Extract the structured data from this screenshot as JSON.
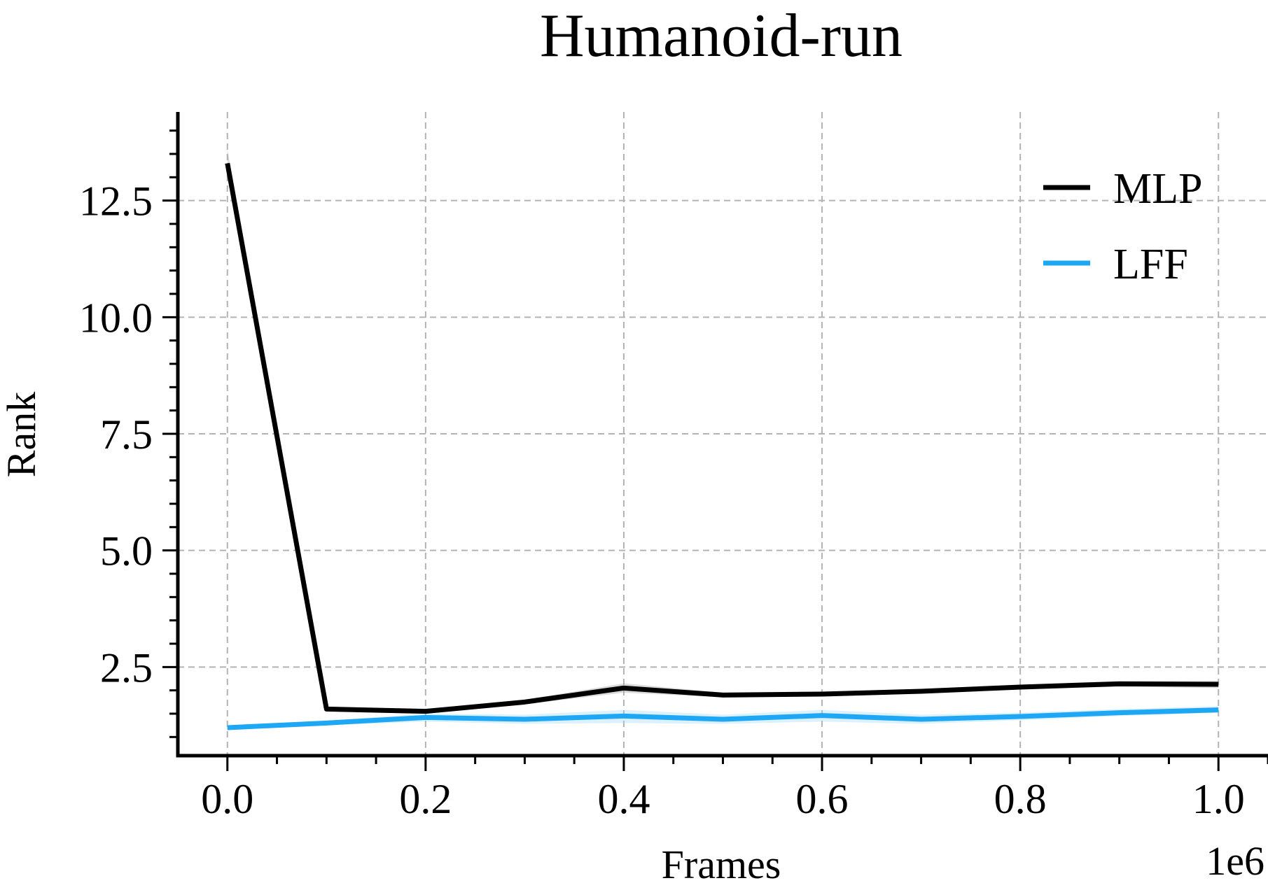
{
  "chart_data": {
    "type": "line",
    "title": "Humanoid-run",
    "xlabel": "Frames",
    "ylabel": "Rank",
    "x_offset_label": "1e6",
    "xlim": [
      -0.05,
      1.05
    ],
    "ylim": [
      0.6,
      14.4
    ],
    "xticks": [
      0.0,
      0.2,
      0.4,
      0.6,
      0.8,
      1.0
    ],
    "xtick_labels": [
      "0.0",
      "0.2",
      "0.4",
      "0.6",
      "0.8",
      "1.0"
    ],
    "yticks": [
      2.5,
      5.0,
      7.5,
      10.0,
      12.5
    ],
    "ytick_labels": [
      "2.5",
      "5.0",
      "7.5",
      "10.0",
      "12.5"
    ],
    "x_minor_step": 0.05,
    "y_minor_step": 0.5,
    "grid": true,
    "legend_position": "top-right",
    "x": [
      0.0,
      0.1,
      0.2,
      0.3,
      0.4,
      0.5,
      0.6,
      0.7,
      0.8,
      0.9,
      1.0
    ],
    "series": [
      {
        "name": "MLP",
        "color": "#000000",
        "band_color": "#999999",
        "values": [
          13.3,
          1.6,
          1.55,
          1.75,
          2.05,
          1.9,
          1.92,
          1.98,
          2.07,
          2.14,
          2.13
        ],
        "lower": [
          13.0,
          1.55,
          1.5,
          1.7,
          1.95,
          1.85,
          1.87,
          1.93,
          2.02,
          2.08,
          2.05
        ],
        "upper": [
          13.6,
          1.65,
          1.6,
          1.8,
          2.15,
          1.95,
          1.97,
          2.03,
          2.12,
          2.2,
          2.2
        ]
      },
      {
        "name": "LFF",
        "color": "#1EA7F5",
        "band_color": "#9ed8f8",
        "values": [
          1.2,
          1.3,
          1.42,
          1.38,
          1.45,
          1.38,
          1.46,
          1.38,
          1.44,
          1.52,
          1.58
        ],
        "lower": [
          1.15,
          1.25,
          1.33,
          1.28,
          1.3,
          1.28,
          1.33,
          1.28,
          1.36,
          1.45,
          1.52
        ],
        "upper": [
          1.25,
          1.35,
          1.5,
          1.48,
          1.58,
          1.48,
          1.58,
          1.48,
          1.52,
          1.6,
          1.66
        ]
      }
    ]
  }
}
